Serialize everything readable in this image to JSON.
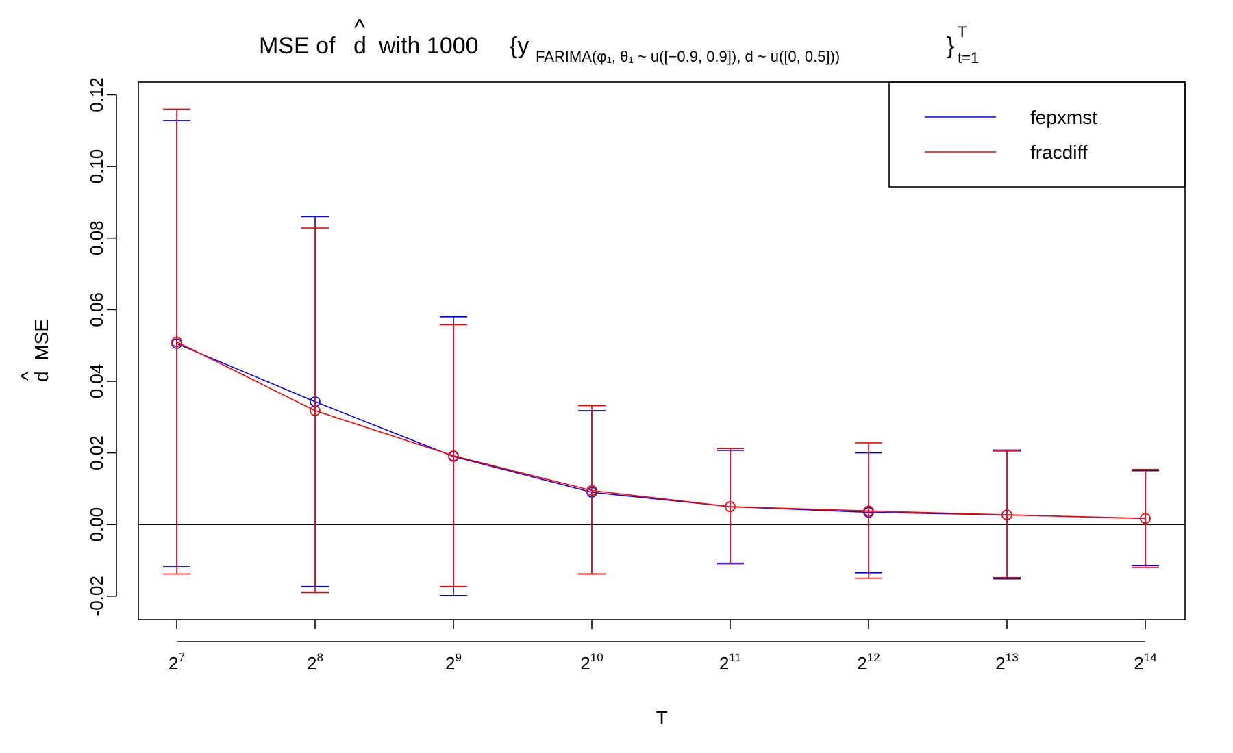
{
  "chart_data": {
    "type": "line",
    "title": {
      "main": "MSE of",
      "hat_symbol": "d",
      "mid": "with 1000",
      "brace_open": "{y",
      "sub_label": "FARIMA(φ₁, θ₁ ~ u([−0.9, 0.9]),  d ~ u([0, 0.5]))",
      "brace_close": "}",
      "sup": "T",
      "sub": "t=1"
    },
    "xlabel": "T",
    "ylabel": {
      "hat_symbol": "d",
      "text": "MSE"
    },
    "x_base": "2",
    "x_exponents": [
      "7",
      "8",
      "9",
      "10",
      "11",
      "12",
      "13",
      "14"
    ],
    "ylim": [
      -0.025,
      0.122
    ],
    "yticks": [
      -0.02,
      0.0,
      0.02,
      0.04,
      0.06,
      0.08,
      0.1,
      0.12
    ],
    "ytick_labels": [
      "-0.02",
      "0.00",
      "0.02",
      "0.04",
      "0.06",
      "0.08",
      "0.10",
      "0.12"
    ],
    "zero_line": true,
    "grid": false,
    "legend_position": "top-right",
    "series": [
      {
        "name": "fepxmst",
        "color": "#0000ff",
        "values": [
          0.0505,
          0.0343,
          0.019,
          0.009,
          0.005,
          0.0034,
          0.0027,
          0.0017
        ],
        "upper": [
          0.1128,
          0.086,
          0.058,
          0.0318,
          0.0207,
          0.02,
          0.0208,
          0.015
        ],
        "lower": [
          -0.0118,
          -0.0173,
          -0.0198,
          -0.0138,
          -0.0108,
          -0.0135,
          -0.0152,
          -0.0115
        ]
      },
      {
        "name": "fracdiff",
        "color": "#ff0000",
        "values": [
          0.051,
          0.0318,
          0.0192,
          0.0095,
          0.005,
          0.0038,
          0.0027,
          0.0017
        ],
        "upper": [
          0.116,
          0.0828,
          0.0558,
          0.0332,
          0.0212,
          0.0228,
          0.0205,
          0.0154
        ],
        "lower": [
          -0.0138,
          -0.019,
          -0.0173,
          -0.0138,
          -0.011,
          -0.015,
          -0.0148,
          -0.012
        ]
      }
    ]
  }
}
